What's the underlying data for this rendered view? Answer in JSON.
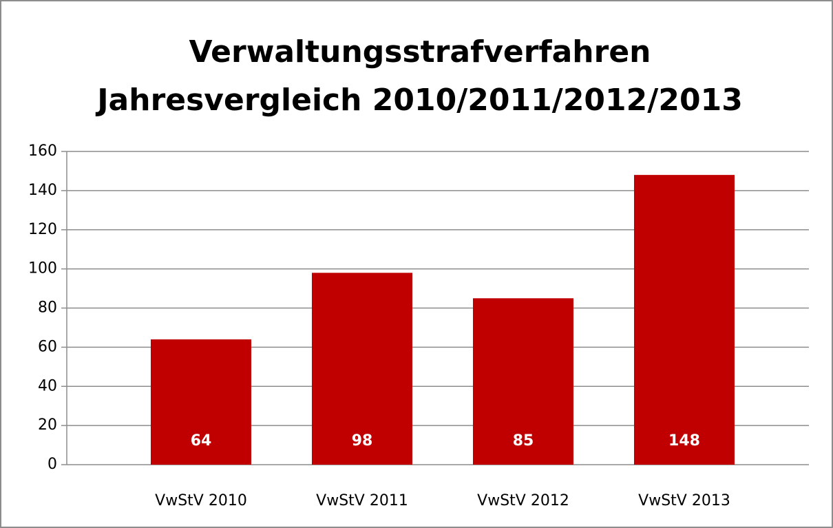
{
  "chart_data": {
    "type": "bar",
    "title": [
      "Verwaltungsstrafverfahren",
      "Jahresvergleich 2010/2011/2012/2013"
    ],
    "categories": [
      "VwStV 2010",
      "VwStV 2011",
      "VwStV 2012",
      "VwStV 2013"
    ],
    "values": [
      64,
      98,
      85,
      148
    ],
    "color": "#c00000",
    "ylim": [
      0,
      160
    ],
    "yticks": [
      0,
      20,
      40,
      60,
      80,
      100,
      120,
      140,
      160
    ],
    "grid": true
  }
}
